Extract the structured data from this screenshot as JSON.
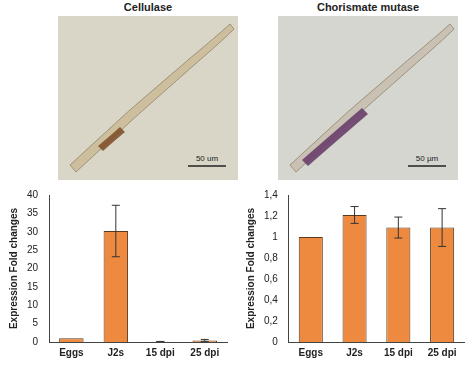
{
  "images": [
    {
      "title": "Cellulase",
      "scale_bar": "50 um"
    },
    {
      "title": "Chorismate mutase",
      "scale_bar": "50 µm"
    }
  ],
  "chart_data": [
    {
      "type": "bar",
      "categories": [
        "Eggs",
        "J2s",
        "15 dpi",
        "25 dpi"
      ],
      "values": [
        1,
        30.2,
        0.1,
        0.4
      ],
      "errors": [
        0,
        7,
        0.05,
        0.3
      ],
      "color": "#ed8a3f",
      "y_label": "Expression Fold changes",
      "ylim": [
        0,
        40
      ],
      "yticks": [
        0,
        5,
        10,
        15,
        20,
        25,
        30,
        35,
        40
      ],
      "grid": false
    },
    {
      "type": "bar",
      "categories": [
        "Eggs",
        "J2s",
        "15 dpi",
        "25 dpi"
      ],
      "values": [
        1,
        1.21,
        1.09,
        1.09
      ],
      "errors": [
        0,
        0.08,
        0.1,
        0.18
      ],
      "color": "#ed8a3f",
      "y_label": "Expression Fold changes",
      "ylim": [
        0,
        1.4
      ],
      "yticks": [
        0,
        {
          "value": 0.2,
          "label": "0,2"
        },
        {
          "value": 0.4,
          "label": "0,4"
        },
        {
          "value": 0.6,
          "label": "0,6"
        },
        {
          "value": 0.8,
          "label": "0,8"
        },
        1,
        {
          "value": 1.2,
          "label": "1,2"
        },
        {
          "value": 1.4,
          "label": "1,4"
        }
      ],
      "grid": false
    }
  ]
}
